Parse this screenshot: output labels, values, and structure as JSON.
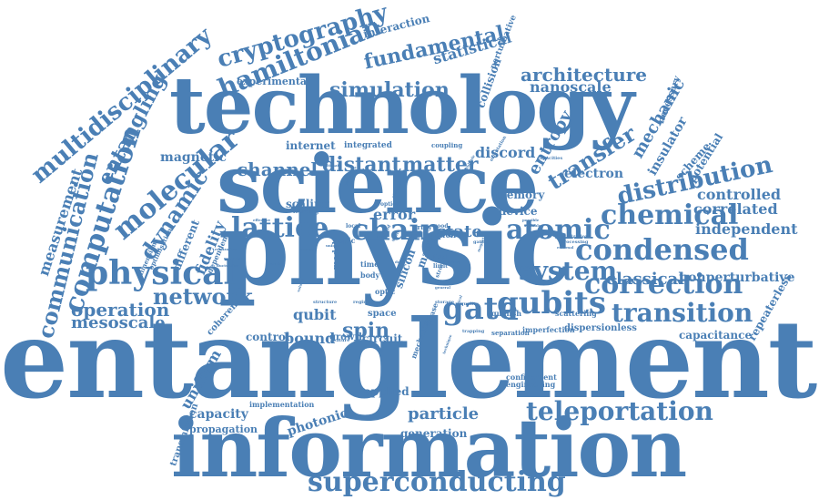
{
  "color": "#4a7fb5",
  "words": [
    {
      "text": "entanglement",
      "weight": 100,
      "orientation": "horizontal"
    },
    {
      "text": "information",
      "weight": 72,
      "orientation": "horizontal"
    },
    {
      "text": "physic",
      "weight": 78,
      "orientation": "horizontal"
    },
    {
      "text": "science",
      "weight": 70,
      "orientation": "horizontal"
    },
    {
      "text": "technology",
      "weight": 70,
      "orientation": "horizontal"
    },
    {
      "text": "superconducting",
      "weight": 30,
      "orientation": "horizontal"
    },
    {
      "text": "teleportation",
      "weight": 28,
      "orientation": "horizontal"
    },
    {
      "text": "transition",
      "weight": 28,
      "orientation": "horizontal"
    },
    {
      "text": "correction",
      "weight": 34,
      "orientation": "horizontal"
    },
    {
      "text": "condensed",
      "weight": 32,
      "orientation": "horizontal"
    },
    {
      "text": "chemical",
      "weight": 30,
      "orientation": "horizontal"
    },
    {
      "text": "distribution",
      "weight": 30,
      "orientation": "rotated"
    },
    {
      "text": "transfer",
      "weight": 26,
      "orientation": "rotated"
    },
    {
      "text": "atomic",
      "weight": 30,
      "orientation": "horizontal"
    },
    {
      "text": "system",
      "weight": 28,
      "orientation": "horizontal"
    },
    {
      "text": "qubits",
      "weight": 32,
      "orientation": "horizontal"
    },
    {
      "text": "gate",
      "weight": 34,
      "orientation": "horizontal"
    },
    {
      "text": "chain",
      "weight": 30,
      "orientation": "horizontal"
    },
    {
      "text": "state",
      "weight": 18,
      "orientation": "horizontal"
    },
    {
      "text": "lattice",
      "weight": 30,
      "orientation": "horizontal"
    },
    {
      "text": "physical",
      "weight": 34,
      "orientation": "horizontal"
    },
    {
      "text": "network",
      "weight": 24,
      "orientation": "horizontal"
    },
    {
      "text": "operation",
      "weight": 20,
      "orientation": "horizontal"
    },
    {
      "text": "mesoscale",
      "weight": 18,
      "orientation": "horizontal"
    },
    {
      "text": "communication",
      "weight": 26,
      "orientation": "vertical"
    },
    {
      "text": "computation",
      "weight": 30,
      "orientation": "vertical"
    },
    {
      "text": "measurement",
      "weight": 16,
      "orientation": "vertical"
    },
    {
      "text": "multidisciplinary",
      "weight": 26,
      "orientation": "rotated"
    },
    {
      "text": "entangling",
      "weight": 22,
      "orientation": "rotated"
    },
    {
      "text": "molecular",
      "weight": 30,
      "orientation": "rotated"
    },
    {
      "text": "dynamic",
      "weight": 24,
      "orientation": "rotated"
    },
    {
      "text": "hamiltonian",
      "weight": 28,
      "orientation": "rotated"
    },
    {
      "text": "cryptography",
      "weight": 26,
      "orientation": "rotated"
    },
    {
      "text": "fundamental",
      "weight": 22,
      "orientation": "rotated"
    },
    {
      "text": "simulation",
      "weight": 22,
      "orientation": "horizontal"
    },
    {
      "text": "architecture",
      "weight": 20,
      "orientation": "horizontal"
    },
    {
      "text": "nanoscale",
      "weight": 16,
      "orientation": "horizontal"
    },
    {
      "text": "statistical",
      "weight": 16,
      "orientation": "rotated"
    },
    {
      "text": "interaction",
      "weight": 12,
      "orientation": "rotated"
    },
    {
      "text": "experimental",
      "weight": 11,
      "orientation": "horizontal"
    },
    {
      "text": "channel",
      "weight": 20,
      "orientation": "horizontal"
    },
    {
      "text": "distant",
      "weight": 22,
      "orientation": "horizontal"
    },
    {
      "text": "matter",
      "weight": 22,
      "orientation": "horizontal"
    },
    {
      "text": "discord",
      "weight": 16,
      "orientation": "horizontal"
    },
    {
      "text": "magnetic",
      "weight": 14,
      "orientation": "horizontal"
    },
    {
      "text": "internet",
      "weight": 12,
      "orientation": "horizontal"
    },
    {
      "text": "integrated",
      "weight": 9,
      "orientation": "horizontal"
    },
    {
      "text": "coupling",
      "weight": 7,
      "orientation": "horizontal"
    },
    {
      "text": "electron",
      "weight": 14,
      "orientation": "horizontal"
    },
    {
      "text": "controlled",
      "weight": 16,
      "orientation": "horizontal"
    },
    {
      "text": "correlated",
      "weight": 16,
      "orientation": "horizontal"
    },
    {
      "text": "independent",
      "weight": 16,
      "orientation": "horizontal"
    },
    {
      "text": "classical",
      "weight": 18,
      "orientation": "horizontal"
    },
    {
      "text": "nonperturbative",
      "weight": 14,
      "orientation": "horizontal"
    },
    {
      "text": "capacitance",
      "weight": 12,
      "orientation": "horizontal"
    },
    {
      "text": "repeaterless",
      "weight": 12,
      "orientation": "rotated"
    },
    {
      "text": "dispersionless",
      "weight": 10,
      "orientation": "horizontal"
    },
    {
      "text": "imperfection",
      "weight": 8,
      "orientation": "horizontal"
    },
    {
      "text": "separation",
      "weight": 7,
      "orientation": "horizontal"
    },
    {
      "text": "quench",
      "weight": 8,
      "orientation": "horizontal"
    },
    {
      "text": "scattering",
      "weight": 8,
      "orientation": "horizontal"
    },
    {
      "text": "mechanic",
      "weight": 18,
      "orientation": "rotated"
    },
    {
      "text": "insulator",
      "weight": 14,
      "orientation": "rotated"
    },
    {
      "text": "entropy",
      "weight": 18,
      "orientation": "rotated"
    },
    {
      "text": "scheme",
      "weight": 12,
      "orientation": "rotated"
    },
    {
      "text": "potential",
      "weight": 12,
      "orientation": "rotated"
    },
    {
      "text": "necessary",
      "weight": 10,
      "orientation": "rotated"
    },
    {
      "text": "perturbative",
      "weight": 9,
      "orientation": "rotated"
    },
    {
      "text": "collision",
      "weight": 12,
      "orientation": "rotated"
    },
    {
      "text": "memory",
      "weight": 12,
      "orientation": "horizontal"
    },
    {
      "text": "device",
      "weight": 12,
      "orientation": "horizontal"
    },
    {
      "text": "error",
      "weight": 16,
      "orientation": "horizontal"
    },
    {
      "text": "scaling",
      "weight": 12,
      "orientation": "horizontal"
    },
    {
      "text": "spin",
      "weight": 22,
      "orientation": "horizontal"
    },
    {
      "text": "qubit",
      "weight": 16,
      "orientation": "horizontal"
    },
    {
      "text": "bound",
      "weight": 16,
      "orientation": "horizontal"
    },
    {
      "text": "control",
      "weight": 12,
      "orientation": "horizontal"
    },
    {
      "text": "growth",
      "weight": 10,
      "orientation": "horizontal"
    },
    {
      "text": "circuit",
      "weight": 12,
      "orientation": "horizontal"
    },
    {
      "text": "space",
      "weight": 10,
      "orientation": "horizontal"
    },
    {
      "text": "silicon",
      "weight": 12,
      "orientation": "rotated"
    },
    {
      "text": "many",
      "weight": 12,
      "orientation": "rotated"
    },
    {
      "text": "applied",
      "weight": 12,
      "orientation": "horizontal"
    },
    {
      "text": "confinement",
      "weight": 8,
      "orientation": "horizontal"
    },
    {
      "text": "engineering",
      "weight": 8,
      "orientation": "horizontal"
    },
    {
      "text": "particle",
      "weight": 18,
      "orientation": "horizontal"
    },
    {
      "text": "generation",
      "weight": 12,
      "orientation": "horizontal"
    },
    {
      "text": "photonic",
      "weight": 14,
      "orientation": "rotated"
    },
    {
      "text": "capacity",
      "weight": 14,
      "orientation": "horizontal"
    },
    {
      "text": "propagation",
      "weight": 11,
      "orientation": "horizontal"
    },
    {
      "text": "implementation",
      "weight": 8,
      "orientation": "horizontal"
    },
    {
      "text": "transmission",
      "weight": 10,
      "orientation": "rotated"
    },
    {
      "text": "uniform",
      "weight": 16,
      "orientation": "rotated"
    },
    {
      "text": "coherent",
      "weight": 10,
      "orientation": "rotated"
    },
    {
      "text": "fidelity",
      "weight": 16,
      "orientation": "rotated"
    },
    {
      "text": "different",
      "weight": 12,
      "orientation": "rotated"
    },
    {
      "text": "optimisation",
      "weight": 7,
      "orientation": "rotated"
    },
    {
      "text": "dimension",
      "weight": 7,
      "orientation": "rotated"
    },
    {
      "text": "dependent",
      "weight": 8,
      "orientation": "rotated"
    },
    {
      "text": "topic",
      "weight": 8,
      "orientation": "horizontal"
    },
    {
      "text": "model",
      "weight": 9,
      "orientation": "vertical"
    },
    {
      "text": "time",
      "weight": 8,
      "orientation": "horizontal"
    },
    {
      "text": "body",
      "weight": 8,
      "orientation": "horizontal"
    },
    {
      "text": "optic",
      "weight": 8,
      "orientation": "horizontal"
    },
    {
      "text": "cold",
      "weight": 8,
      "orientation": "horizontal"
    },
    {
      "text": "toffoli",
      "weight": 8,
      "orientation": "horizontal"
    },
    {
      "text": "good",
      "weight": 6,
      "orientation": "horizontal"
    },
    {
      "text": "array",
      "weight": 7,
      "orientation": "horizontal"
    },
    {
      "text": "field",
      "weight": 6,
      "orientation": "horizontal"
    },
    {
      "text": "limit",
      "weight": 6,
      "orientation": "horizontal"
    },
    {
      "text": "strong",
      "weight": 6,
      "orientation": "rotated"
    },
    {
      "text": "mechanism",
      "weight": 8,
      "orientation": "rotated"
    },
    {
      "text": "phase",
      "weight": 8,
      "orientation": "rotated"
    },
    {
      "text": "learning",
      "weight": 6,
      "orientation": "horizontal"
    },
    {
      "text": "optical",
      "weight": 6,
      "orientation": "horizontal"
    },
    {
      "text": "local",
      "weight": 6,
      "orientation": "horizontal"
    },
    {
      "text": "localization",
      "weight": 5,
      "orientation": "horizontal"
    },
    {
      "text": "processing",
      "weight": 5,
      "orientation": "horizontal"
    },
    {
      "text": "gating",
      "weight": 5,
      "orientation": "horizontal"
    },
    {
      "text": "structure",
      "weight": 5,
      "orientation": "horizontal"
    },
    {
      "text": "storage",
      "weight": 5,
      "orientation": "horizontal"
    },
    {
      "text": "trapping",
      "weight": 5,
      "orientation": "horizontal"
    },
    {
      "text": "quality",
      "weight": 5,
      "orientation": "horizontal"
    },
    {
      "text": "regime",
      "weight": 5,
      "orientation": "horizontal"
    },
    {
      "text": "feature",
      "weight": 5,
      "orientation": "horizontal"
    },
    {
      "text": "capacities",
      "weight": 5,
      "orientation": "horizontal"
    },
    {
      "text": "orientation",
      "weight": 5,
      "orientation": "rotated"
    },
    {
      "text": "multiple",
      "weight": 4,
      "orientation": "rotated"
    },
    {
      "text": "ultimate",
      "weight": 4,
      "orientation": "horizontal"
    },
    {
      "text": "realization",
      "weight": 4,
      "orientation": "horizontal"
    },
    {
      "text": "fluctuation",
      "weight": 4,
      "orientation": "horizontal"
    },
    {
      "text": "evolution",
      "weight": 4,
      "orientation": "horizontal"
    },
    {
      "text": "energy",
      "weight": 4,
      "orientation": "horizontal"
    },
    {
      "text": "effective",
      "weight": 4,
      "orientation": "horizontal"
    },
    {
      "text": "external",
      "weight": 4,
      "orientation": "horizontal"
    },
    {
      "text": "possible",
      "weight": 4,
      "orientation": "horizontal"
    },
    {
      "text": "scalable",
      "weight": 4,
      "orientation": "horizontal"
    },
    {
      "text": "general",
      "weight": 4,
      "orientation": "horizontal"
    },
    {
      "text": "factory",
      "weight": 4,
      "orientation": "horizontal"
    },
    {
      "text": "volume",
      "weight": 4,
      "orientation": "rotated"
    },
    {
      "text": "bosonic",
      "weight": 4,
      "orientation": "horizontal"
    },
    {
      "text": "wave",
      "weight": 4,
      "orientation": "horizontal"
    },
    {
      "text": "unique",
      "weight": 4,
      "orientation": "horizontal"
    },
    {
      "text": "procedure",
      "weight": 4,
      "orientation": "rotated"
    },
    {
      "text": "tunneling",
      "weight": 4,
      "orientation": "rotated"
    },
    {
      "text": "ultrafast",
      "weight": 4,
      "orientation": "rotated"
    },
    {
      "text": "magnet",
      "weight": 4,
      "orientation": "rotated"
    },
    {
      "text": "logical",
      "weight": 4,
      "orientation": "rotated"
    },
    {
      "text": "technique",
      "weight": 4,
      "orientation": "rotated"
    },
    {
      "text": "dot",
      "weight": 4,
      "orientation": "horizontal"
    },
    {
      "text": "solid",
      "weight": 5,
      "orientation": "rotated"
    },
    {
      "text": "scale",
      "weight": 5,
      "orientation": "rotated"
    }
  ]
}
